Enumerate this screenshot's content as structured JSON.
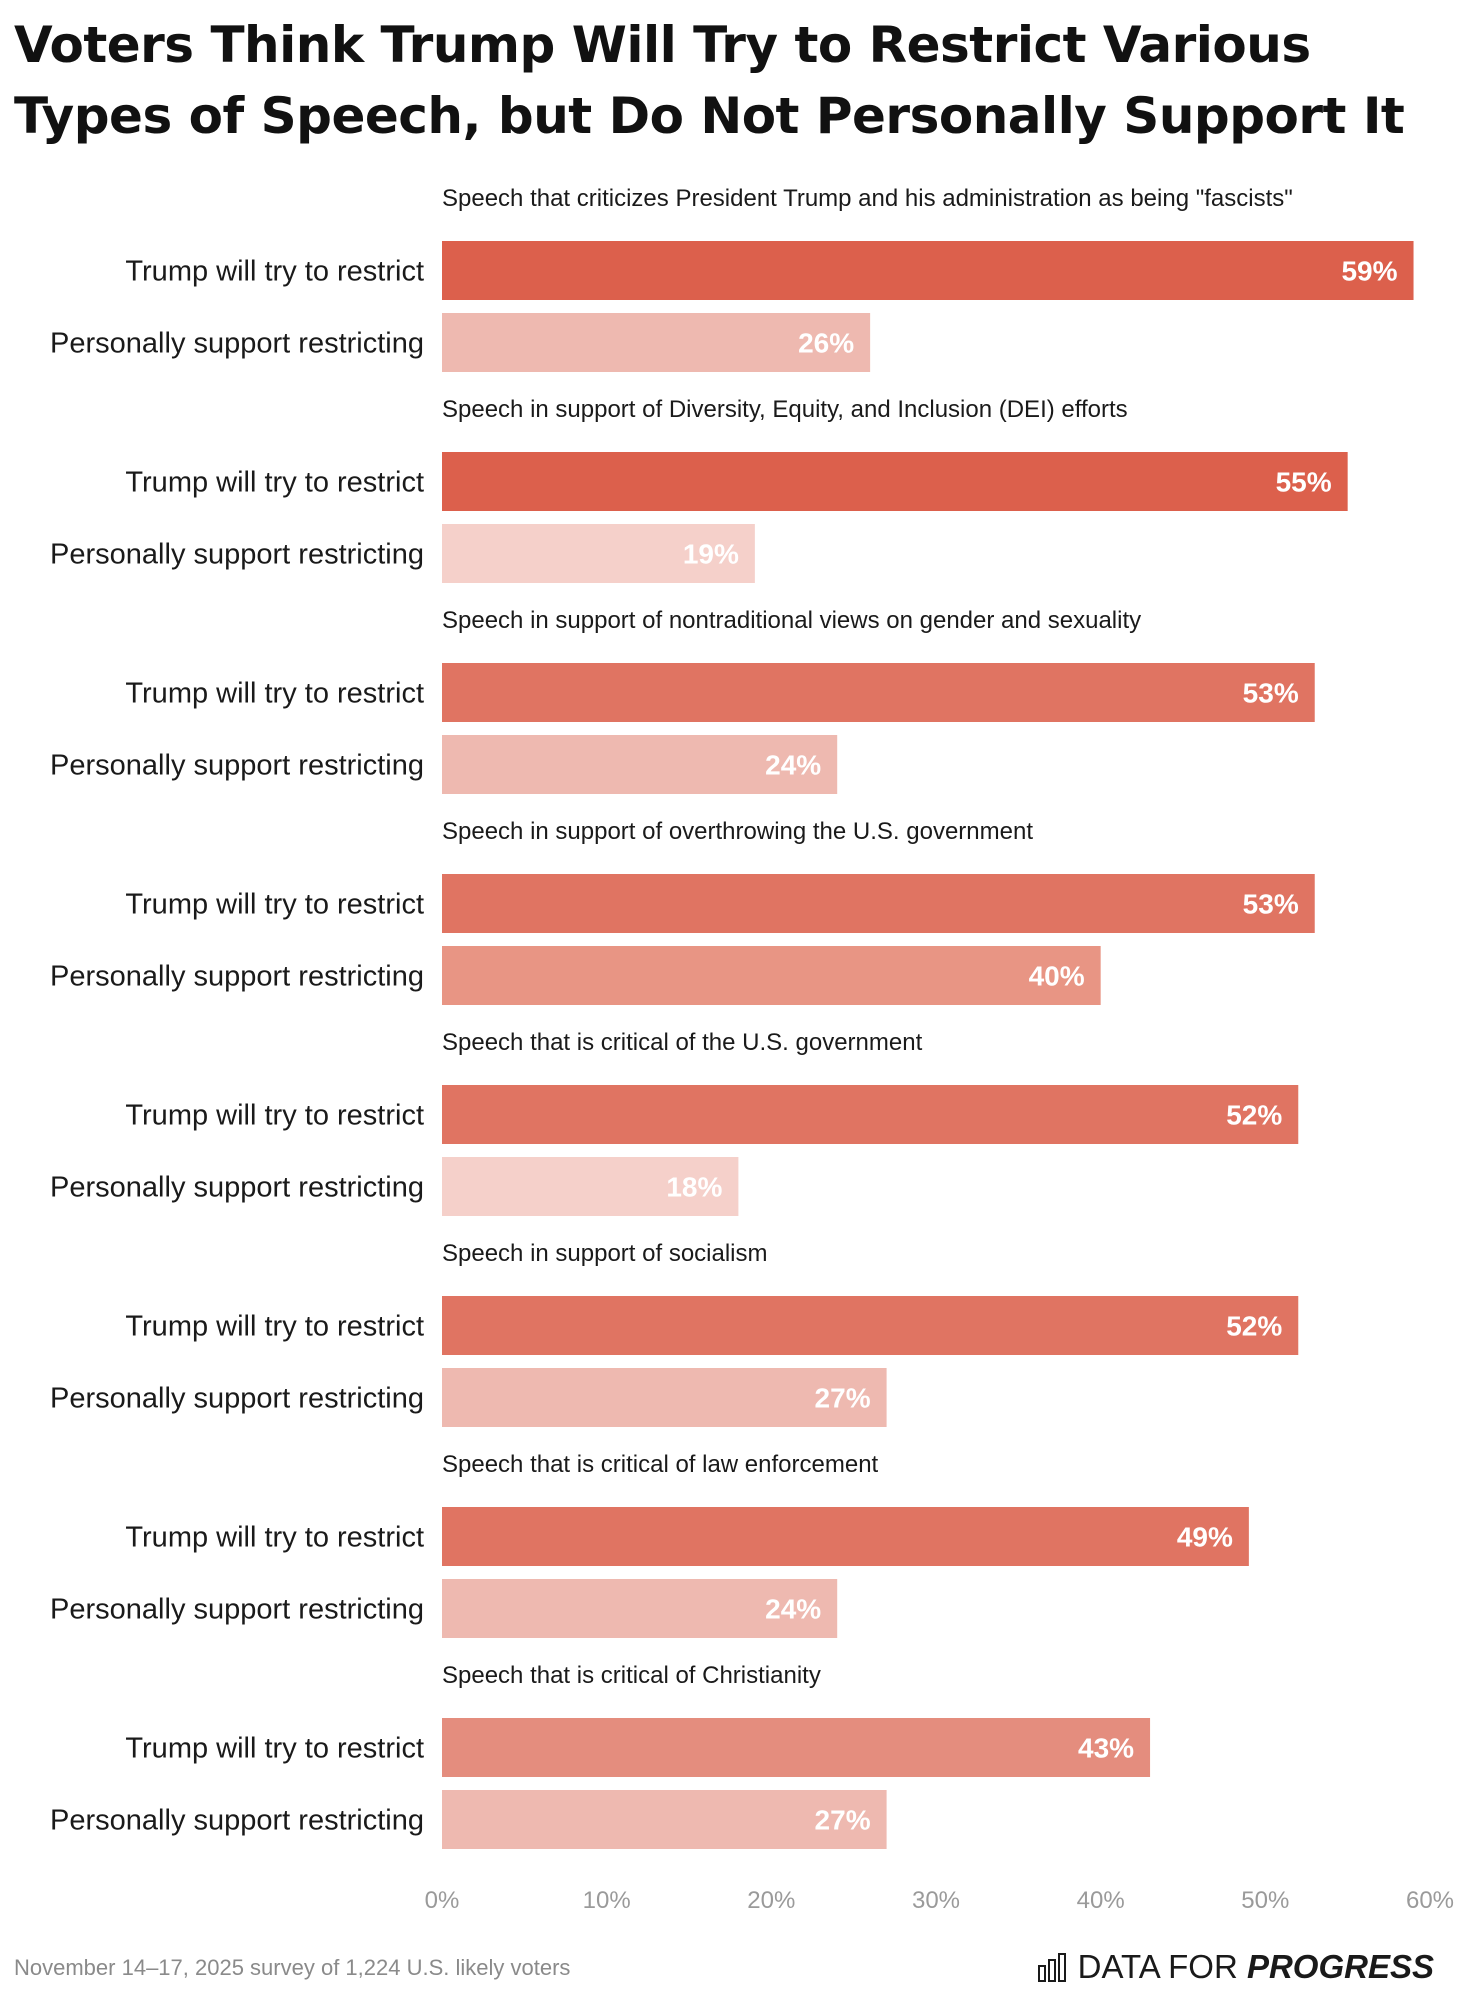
{
  "title": "Voters Think Trump Will Try to Restrict Various Types of Speech, but Do Not Personally Support It",
  "footer": {
    "note": "November 14–17, 2025 survey of 1,224 U.S. likely voters",
    "brand_regular": "DATA FOR ",
    "brand_bold": "PROGRESS",
    "brand_icon": "bar-chart-icon"
  },
  "colors": {
    "trump_bar_shades": [
      "#dc604c",
      "#e07462",
      "#e48d7e"
    ],
    "support_bar_shades": [
      "#f5d0ca",
      "#eeb9b0",
      "#e89584"
    ],
    "category_text": "#1a1a1a",
    "tick_text": "#9a9a9a"
  },
  "chart_data": {
    "type": "bar",
    "orientation": "horizontal",
    "xlim": [
      0,
      60
    ],
    "ticks": [
      "0%",
      "10%",
      "20%",
      "30%",
      "40%",
      "50%",
      "60%"
    ],
    "tick_values": [
      0,
      10,
      20,
      30,
      40,
      50,
      60
    ],
    "series": [
      {
        "name": "Trump will try to restrict",
        "values": [
          59,
          55,
          53,
          53,
          52,
          52,
          49,
          43
        ]
      },
      {
        "name": "Personally support restricting",
        "values": [
          26,
          19,
          24,
          40,
          18,
          27,
          24,
          27
        ]
      }
    ],
    "categories": [
      "Speech that criticizes President Trump and his administration as being \"fascists\"",
      "Speech in support of Diversity, Equity, and Inclusion (DEI) efforts",
      "Speech in support of nontraditional views on gender and sexuality",
      "Speech in support of overthrowing the U.S. government",
      "Speech that is critical of the U.S. government",
      "Speech in support of socialism",
      "Speech that is critical of law enforcement",
      "Speech that is critical of Christianity"
    ],
    "value_labels": {
      "Trump will try to restrict": [
        "59%",
        "55%",
        "53%",
        "53%",
        "52%",
        "52%",
        "49%",
        "43%"
      ],
      "Personally support restricting": [
        "26%",
        "19%",
        "24%",
        "40%",
        "18%",
        "27%",
        "24%",
        "27%"
      ]
    }
  }
}
